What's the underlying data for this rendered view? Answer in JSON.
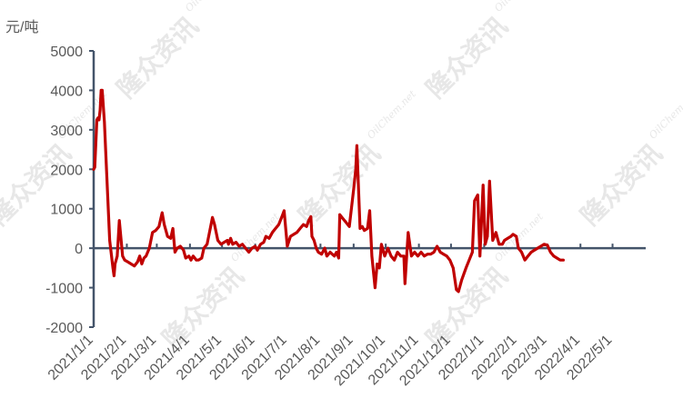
{
  "chart_data": {
    "type": "line",
    "unit_label": "元/吨",
    "watermark": {
      "brand_cn": "隆众资讯",
      "brand_en": "OilChem.net"
    },
    "ylim": [
      -2000,
      5000
    ],
    "y_ticks": [
      -2000,
      -1000,
      0,
      1000,
      2000,
      3000,
      4000,
      5000
    ],
    "x_start": "2021-01-01",
    "x_end": "2022-06-01",
    "x_ticks": [
      "2021/1/1",
      "2021/2/1",
      "2021/3/1",
      "2021/4/1",
      "2021/5/1",
      "2021/6/1",
      "2021/7/1",
      "2021/8/1",
      "2021/9/1",
      "2021/10/1",
      "2021/11/1",
      "2021/12/1",
      "2022/1/1",
      "2022/2/1",
      "2022/3/1",
      "2022/4/1",
      "2022/5/1"
    ],
    "grid": false,
    "series": [
      {
        "color": "#C00000",
        "points": [
          [
            "2021-01-01",
            2000
          ],
          [
            "2021-01-02",
            2050
          ],
          [
            "2021-01-04",
            3250
          ],
          [
            "2021-01-05",
            3300
          ],
          [
            "2021-01-06",
            3250
          ],
          [
            "2021-01-07",
            3500
          ],
          [
            "2021-01-08",
            4000
          ],
          [
            "2021-01-09",
            4000
          ],
          [
            "2021-01-11",
            3200
          ],
          [
            "2021-01-13",
            2000
          ],
          [
            "2021-01-16",
            200
          ],
          [
            "2021-01-19",
            -500
          ],
          [
            "2021-01-20",
            -700
          ],
          [
            "2021-01-21",
            -400
          ],
          [
            "2021-01-23",
            -200
          ],
          [
            "2021-01-25",
            700
          ],
          [
            "2021-01-28",
            -200
          ],
          [
            "2021-01-30",
            -300
          ],
          [
            "2021-02-02",
            -350
          ],
          [
            "2021-02-05",
            -400
          ],
          [
            "2021-02-08",
            -450
          ],
          [
            "2021-02-11",
            -350
          ],
          [
            "2021-02-13",
            -200
          ],
          [
            "2021-02-15",
            -400
          ],
          [
            "2021-02-17",
            -250
          ],
          [
            "2021-02-19",
            -200
          ],
          [
            "2021-02-22",
            0
          ],
          [
            "2021-02-25",
            400
          ],
          [
            "2021-02-28",
            450
          ],
          [
            "2021-03-03",
            550
          ],
          [
            "2021-03-06",
            900
          ],
          [
            "2021-03-08",
            600
          ],
          [
            "2021-03-11",
            300
          ],
          [
            "2021-03-14",
            250
          ],
          [
            "2021-03-16",
            500
          ],
          [
            "2021-03-18",
            -100
          ],
          [
            "2021-03-20",
            0
          ],
          [
            "2021-03-23",
            50
          ],
          [
            "2021-03-26",
            -50
          ],
          [
            "2021-03-28",
            -250
          ],
          [
            "2021-03-31",
            -200
          ],
          [
            "2021-04-02",
            -300
          ],
          [
            "2021-04-04",
            -200
          ],
          [
            "2021-04-07",
            -300
          ],
          [
            "2021-04-09",
            -300
          ],
          [
            "2021-04-12",
            -250
          ],
          [
            "2021-04-14",
            0
          ],
          [
            "2021-04-17",
            100
          ],
          [
            "2021-04-20",
            500
          ],
          [
            "2021-04-22",
            780
          ],
          [
            "2021-04-24",
            600
          ],
          [
            "2021-04-27",
            200
          ],
          [
            "2021-04-30",
            100
          ],
          [
            "2021-05-03",
            150
          ],
          [
            "2021-05-06",
            200
          ],
          [
            "2021-05-07",
            100
          ],
          [
            "2021-05-09",
            250
          ],
          [
            "2021-05-11",
            100
          ],
          [
            "2021-05-14",
            150
          ],
          [
            "2021-05-17",
            50
          ],
          [
            "2021-05-20",
            100
          ],
          [
            "2021-05-23",
            0
          ],
          [
            "2021-05-26",
            -100
          ],
          [
            "2021-05-29",
            0
          ],
          [
            "2021-06-01",
            50
          ],
          [
            "2021-06-03",
            -50
          ],
          [
            "2021-06-06",
            100
          ],
          [
            "2021-06-09",
            150
          ],
          [
            "2021-06-11",
            300
          ],
          [
            "2021-06-14",
            250
          ],
          [
            "2021-06-17",
            400
          ],
          [
            "2021-06-20",
            500
          ],
          [
            "2021-06-23",
            600
          ],
          [
            "2021-06-26",
            800
          ],
          [
            "2021-06-28",
            950
          ],
          [
            "2021-07-01",
            50
          ],
          [
            "2021-07-04",
            300
          ],
          [
            "2021-07-07",
            350
          ],
          [
            "2021-07-10",
            400
          ],
          [
            "2021-07-13",
            500
          ],
          [
            "2021-07-16",
            600
          ],
          [
            "2021-07-19",
            550
          ],
          [
            "2021-07-21",
            700
          ],
          [
            "2021-07-23",
            800
          ],
          [
            "2021-07-24",
            300
          ],
          [
            "2021-07-26",
            200
          ],
          [
            "2021-07-28",
            0
          ],
          [
            "2021-07-30",
            -100
          ],
          [
            "2021-08-02",
            -150
          ],
          [
            "2021-08-05",
            0
          ],
          [
            "2021-08-07",
            -200
          ],
          [
            "2021-08-10",
            -100
          ],
          [
            "2021-08-12",
            -150
          ],
          [
            "2021-08-14",
            -200
          ],
          [
            "2021-08-16",
            -100
          ],
          [
            "2021-08-18",
            -250
          ],
          [
            "2021-08-19",
            850
          ],
          [
            "2021-08-22",
            750
          ],
          [
            "2021-08-25",
            650
          ],
          [
            "2021-08-28",
            550
          ],
          [
            "2021-09-01",
            1500
          ],
          [
            "2021-09-03",
            2000
          ],
          [
            "2021-09-04",
            2600
          ],
          [
            "2021-09-07",
            500
          ],
          [
            "2021-09-09",
            550
          ],
          [
            "2021-09-11",
            450
          ],
          [
            "2021-09-14",
            500
          ],
          [
            "2021-09-16",
            950
          ],
          [
            "2021-09-18",
            -200
          ],
          [
            "2021-09-21",
            -1000
          ],
          [
            "2021-09-23",
            -400
          ],
          [
            "2021-09-25",
            -500
          ],
          [
            "2021-09-27",
            100
          ],
          [
            "2021-09-30",
            -200
          ],
          [
            "2021-10-03",
            0
          ],
          [
            "2021-10-06",
            -200
          ],
          [
            "2021-10-09",
            -300
          ],
          [
            "2021-10-12",
            -100
          ],
          [
            "2021-10-15",
            -200
          ],
          [
            "2021-10-18",
            -200
          ],
          [
            "2021-10-19",
            -900
          ],
          [
            "2021-10-21",
            0
          ],
          [
            "2021-10-22",
            400
          ],
          [
            "2021-10-25",
            -200
          ],
          [
            "2021-10-28",
            -100
          ],
          [
            "2021-10-31",
            -200
          ],
          [
            "2021-11-03",
            -100
          ],
          [
            "2021-11-06",
            -200
          ],
          [
            "2021-11-09",
            -150
          ],
          [
            "2021-11-12",
            -150
          ],
          [
            "2021-11-15",
            -100
          ],
          [
            "2021-11-18",
            50
          ],
          [
            "2021-11-21",
            -100
          ],
          [
            "2021-11-24",
            -150
          ],
          [
            "2021-11-27",
            -200
          ],
          [
            "2021-11-30",
            -300
          ],
          [
            "2021-12-03",
            -500
          ],
          [
            "2021-12-06",
            -1050
          ],
          [
            "2021-12-08",
            -1100
          ],
          [
            "2021-12-11",
            -800
          ],
          [
            "2021-12-15",
            -500
          ],
          [
            "2021-12-18",
            -300
          ],
          [
            "2021-12-21",
            -100
          ],
          [
            "2021-12-23",
            1200
          ],
          [
            "2021-12-26",
            1350
          ],
          [
            "2021-12-28",
            -200
          ],
          [
            "2021-12-31",
            1600
          ],
          [
            "2022-01-02",
            100
          ],
          [
            "2022-01-04",
            300
          ],
          [
            "2022-01-06",
            1700
          ],
          [
            "2022-01-09",
            200
          ],
          [
            "2022-01-12",
            400
          ],
          [
            "2022-01-15",
            100
          ],
          [
            "2022-01-18",
            100
          ],
          [
            "2022-01-20",
            200
          ],
          [
            "2022-01-23",
            250
          ],
          [
            "2022-01-26",
            300
          ],
          [
            "2022-01-28",
            350
          ],
          [
            "2022-01-31",
            300
          ],
          [
            "2022-02-02",
            0
          ],
          [
            "2022-02-05",
            -100
          ],
          [
            "2022-02-08",
            -300
          ],
          [
            "2022-02-11",
            -200
          ],
          [
            "2022-02-14",
            -100
          ],
          [
            "2022-02-17",
            -50
          ],
          [
            "2022-02-20",
            0
          ],
          [
            "2022-02-23",
            50
          ],
          [
            "2022-02-26",
            100
          ],
          [
            "2022-03-01",
            80
          ],
          [
            "2022-03-04",
            -100
          ],
          [
            "2022-03-07",
            -200
          ],
          [
            "2022-03-10",
            -250
          ],
          [
            "2022-03-13",
            -300
          ],
          [
            "2022-03-16",
            -300
          ]
        ]
      }
    ]
  }
}
